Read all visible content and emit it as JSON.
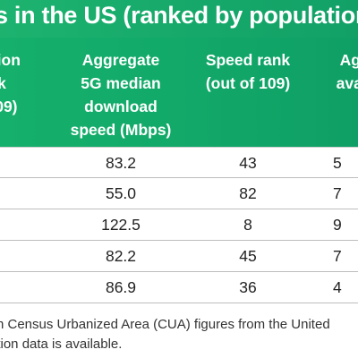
{
  "title": "s in the US (ranked by population",
  "columns": [
    {
      "lines": [
        "ation",
        "k",
        "109)"
      ]
    },
    {
      "lines": [
        "Aggregate",
        "5G median",
        "download",
        "speed (Mbps)"
      ]
    },
    {
      "lines": [
        "Speed rank",
        "(out of 109)"
      ]
    },
    {
      "lines": [
        "Aggr",
        "availa"
      ]
    }
  ],
  "rows": [
    {
      "speed": "83.2",
      "rank": "43",
      "avail": "5"
    },
    {
      "speed": "55.0",
      "rank": "82",
      "avail": "7"
    },
    {
      "speed": "122.5",
      "rank": "8",
      "avail": "9"
    },
    {
      "speed": "82.2",
      "rank": "45",
      "avail": "7"
    },
    {
      "speed": "86.9",
      "rank": "36",
      "avail": "4"
    }
  ],
  "footnote": {
    "line1": "n Census Urbanized Area (CUA) figures from the United",
    "line2": "ation data is available."
  }
}
